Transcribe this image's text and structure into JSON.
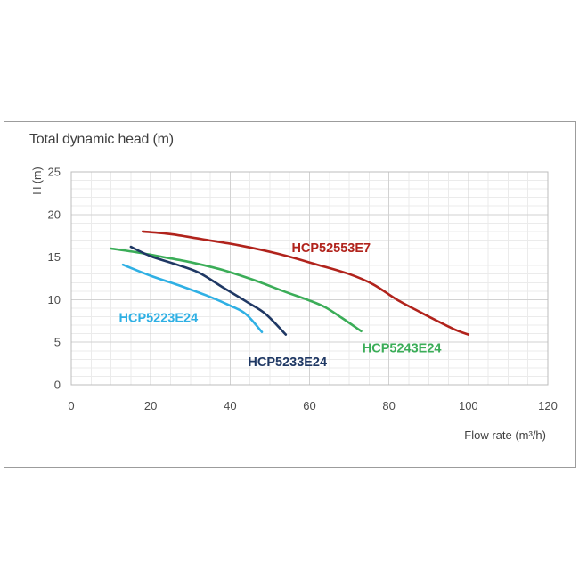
{
  "card": {
    "border_color": "#9c9c9c"
  },
  "colors": {
    "title_text": "#3f3f3f",
    "tick_text": "#4d4d4d",
    "grid_minor": "#ebebeb",
    "grid_major": "#d2d2d2",
    "plot_border": "#bcbcbc"
  },
  "chart_data": {
    "type": "line",
    "title": "Total dynamic head (m)",
    "xlabel": "Flow rate (m³/h)",
    "ylabel": "H (m)",
    "xlim": [
      0,
      120
    ],
    "ylim": [
      0,
      25
    ],
    "xticks": [
      0,
      20,
      40,
      60,
      80,
      100,
      120
    ],
    "yticks": [
      0,
      5,
      10,
      15,
      20,
      25
    ],
    "x_minor_step": 5,
    "y_minor_step": 1,
    "grid": true,
    "legend_position": "inline-curve-labels",
    "series": [
      {
        "name": "HCP52553E7",
        "color": "#b1231c",
        "label_pos": [
          55.5,
          15.6
        ],
        "points": [
          [
            18,
            18.0
          ],
          [
            25,
            17.7
          ],
          [
            33,
            17.1
          ],
          [
            42,
            16.4
          ],
          [
            52,
            15.4
          ],
          [
            62,
            14.1
          ],
          [
            70,
            13.0
          ],
          [
            76,
            11.8
          ],
          [
            82,
            10.0
          ],
          [
            88,
            8.5
          ],
          [
            93,
            7.3
          ],
          [
            97,
            6.4
          ],
          [
            100,
            5.9
          ]
        ]
      },
      {
        "name": "HCP5243E24",
        "color": "#3bad58",
        "label_pos": [
          73.3,
          3.8
        ],
        "points": [
          [
            10,
            16.0
          ],
          [
            16,
            15.6
          ],
          [
            22,
            15.1
          ],
          [
            30,
            14.4
          ],
          [
            38,
            13.5
          ],
          [
            46,
            12.3
          ],
          [
            54,
            10.9
          ],
          [
            60,
            9.9
          ],
          [
            64,
            9.1
          ],
          [
            68,
            7.9
          ],
          [
            73,
            6.3
          ]
        ]
      },
      {
        "name": "HCP5233E24",
        "color": "#1f3864",
        "label_pos": [
          44.5,
          2.2
        ],
        "points": [
          [
            15,
            16.2
          ],
          [
            20,
            15.1
          ],
          [
            26,
            14.2
          ],
          [
            32,
            13.2
          ],
          [
            38,
            11.5
          ],
          [
            44,
            9.8
          ],
          [
            49,
            8.3
          ],
          [
            54,
            5.9
          ]
        ]
      },
      {
        "name": "HCP5223E24",
        "color": "#2fb0e4",
        "label_pos": [
          12,
          7.4
        ],
        "points": [
          [
            13,
            14.1
          ],
          [
            20,
            12.8
          ],
          [
            27,
            11.7
          ],
          [
            34,
            10.5
          ],
          [
            40,
            9.3
          ],
          [
            44,
            8.3
          ],
          [
            48,
            6.2
          ]
        ]
      }
    ]
  }
}
